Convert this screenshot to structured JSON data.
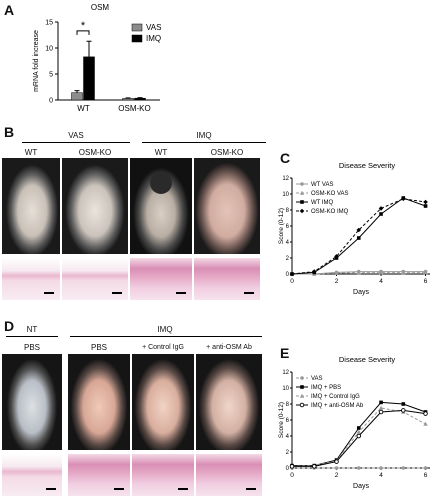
{
  "figure": {
    "panels": {
      "A": "A",
      "B": "B",
      "C": "C",
      "D": "D",
      "E": "E"
    }
  },
  "panel_b": {
    "groups": [
      "VAS",
      "IMQ"
    ],
    "columns": [
      "WT",
      "OSM-KO",
      "WT",
      "OSM-KO"
    ]
  },
  "panel_d": {
    "groups": [
      "NT",
      "IMQ"
    ],
    "columns": [
      "PBS",
      "PBS",
      "+ Control IgG",
      "+ anti-OSM Ab"
    ]
  },
  "chart_data": [
    {
      "panel": "A",
      "type": "bar",
      "title": "OSM",
      "ylabel": "mRNA fold increase",
      "ylim": [
        0,
        15
      ],
      "yticks": [
        "0",
        "5",
        "10",
        "15"
      ],
      "categories": [
        "WT",
        "OSM-KO"
      ],
      "series": [
        {
          "name": "VAS",
          "color": "#8c8c8c",
          "values": [
            1.4,
            0.3
          ],
          "errors": [
            0.4,
            0.1
          ]
        },
        {
          "name": "IMQ",
          "color": "#000000",
          "values": [
            8.3,
            0.35
          ],
          "errors": [
            3.0,
            0.1
          ]
        }
      ],
      "annotations": [
        "*"
      ],
      "legend": "top-right"
    },
    {
      "panel": "C",
      "type": "line",
      "title": "Disease Severity",
      "xlabel": "Days",
      "ylabel": "Score (0-12)",
      "xlim": [
        0,
        6.2
      ],
      "ylim": [
        0,
        12
      ],
      "xticks": [
        "0",
        "2",
        "4",
        "6"
      ],
      "yticks": [
        "0",
        "2",
        "4",
        "6",
        "8",
        "10",
        "12"
      ],
      "x": [
        0,
        1,
        2,
        3,
        4,
        5,
        6
      ],
      "series": [
        {
          "name": "WT VAS",
          "color": "#9a9a9a",
          "dash": false,
          "marker": "circle",
          "values": [
            0,
            0,
            0.2,
            0.3,
            0.3,
            0.3,
            0.3
          ]
        },
        {
          "name": "OSM-KO VAS",
          "color": "#9a9a9a",
          "dash": true,
          "marker": "triangle",
          "values": [
            0,
            0,
            0.1,
            0.2,
            0.2,
            0.2,
            0.2
          ]
        },
        {
          "name": "WT IMQ",
          "color": "#000000",
          "dash": false,
          "marker": "square",
          "values": [
            0,
            0.2,
            2.0,
            4.5,
            7.5,
            9.5,
            8.5
          ]
        },
        {
          "name": "OSM-KO IMQ",
          "color": "#000000",
          "dash": true,
          "marker": "diamond",
          "values": [
            0,
            0.3,
            2.2,
            5.5,
            8.2,
            9.4,
            9.0
          ]
        }
      ],
      "legend": "top-left"
    },
    {
      "panel": "E",
      "type": "line",
      "title": "Disease Severity",
      "xlabel": "Days",
      "ylabel": "Score (0-12)",
      "xlim": [
        0,
        6.2
      ],
      "ylim": [
        0,
        12
      ],
      "xticks": [
        "0",
        "2",
        "4",
        "6"
      ],
      "yticks": [
        "0",
        "2",
        "4",
        "6",
        "8",
        "10",
        "12"
      ],
      "x": [
        0,
        1,
        2,
        3,
        4,
        5,
        6
      ],
      "series": [
        {
          "name": "VAS",
          "color": "#9a9a9a",
          "dash": true,
          "marker": "circle",
          "values": [
            0,
            0,
            0,
            0,
            0,
            0,
            0
          ]
        },
        {
          "name": "IMQ + PBS",
          "color": "#000000",
          "dash": false,
          "marker": "square",
          "values": [
            0.3,
            0.3,
            1.0,
            5.0,
            8.2,
            8.0,
            7.0
          ]
        },
        {
          "name": "IMQ + Control IgG",
          "color": "#9a9a9a",
          "dash": true,
          "marker": "triangle",
          "values": [
            0.2,
            0.3,
            0.9,
            4.5,
            7.5,
            7.0,
            5.5
          ]
        },
        {
          "name": "IMQ + anti-OSM Ab",
          "color": "#000000",
          "dash": false,
          "marker": "circle-open",
          "values": [
            0.2,
            0.2,
            0.8,
            4.0,
            7.0,
            7.2,
            6.8
          ]
        }
      ],
      "legend": "top-left"
    }
  ]
}
